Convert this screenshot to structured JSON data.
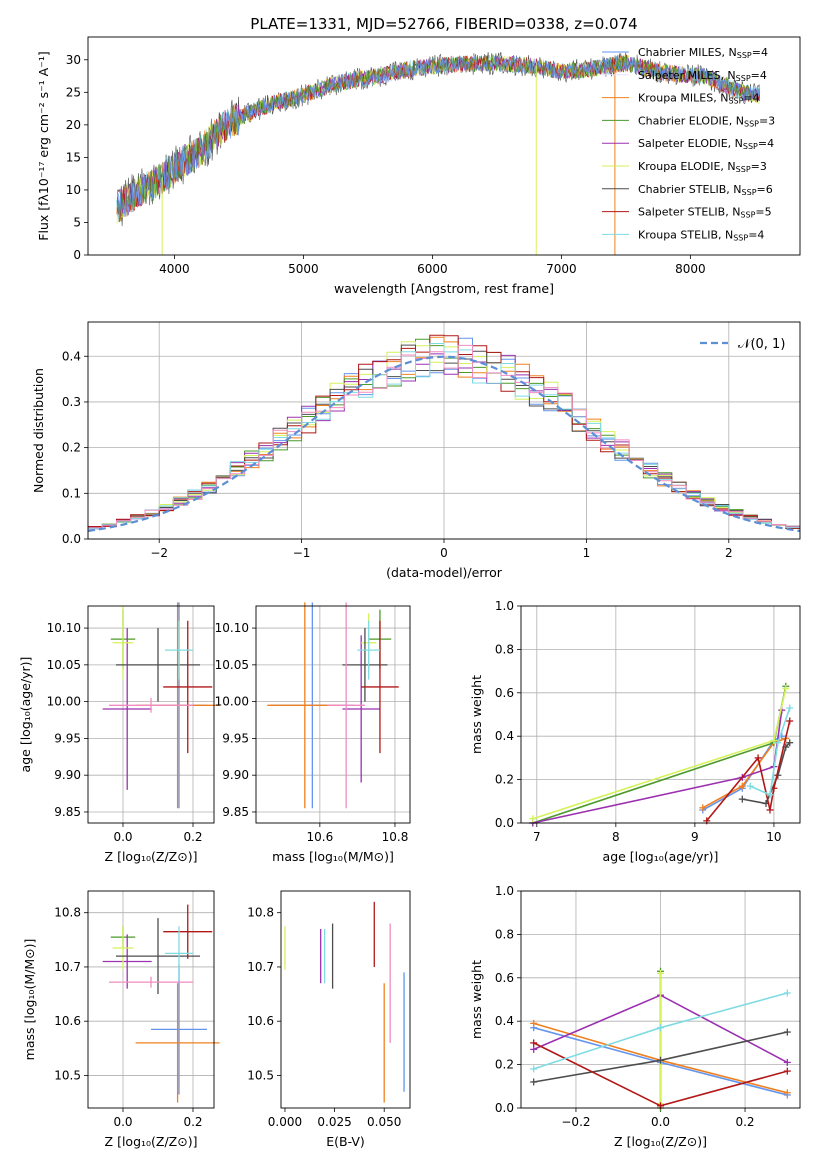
{
  "page": {
    "title": "PLATE=1331, MJD=52766, FIBERID=0338, z=0.074"
  },
  "colors": {
    "chabrier_miles": "#6495ed",
    "salpeter_miles": "#e6e6fa",
    "kroupa_miles": "#f0801f",
    "chabrier_elodie": "#4c9a2a",
    "salpeter_elodie": "#9b30b0",
    "kroupa_elodie": "#d4f25a",
    "chabrier_stelib": "#4d4d4d",
    "salpeter_stelib": "#b21818",
    "kroupa_stelib": "#7fdbe2",
    "pink": "#f08cc0",
    "normal": "#5b8fd6",
    "grid": "#b0b0b0"
  },
  "chart_data": [
    {
      "id": "spectrum",
      "type": "line",
      "title": "PLATE=1331, MJD=52766, FIBERID=0338, z=0.074",
      "xlabel": "wavelength [Angstrom, rest frame]",
      "ylabel": "Flux [fλ10⁻¹⁷ erg cm⁻² s⁻¹ A⁻¹]",
      "xlim": [
        3330,
        8850
      ],
      "ylim": [
        0,
        33.5
      ],
      "xticks": [
        "4000",
        "5000",
        "6000",
        "7000",
        "8000"
      ],
      "yticks": [
        "0",
        "5",
        "10",
        "15",
        "20",
        "25",
        "30"
      ],
      "grid": false,
      "legend_position": "top-right",
      "continuum": [
        [
          3550,
          7.0
        ],
        [
          3700,
          9.5
        ],
        [
          3850,
          11.0
        ],
        [
          4000,
          13.5
        ],
        [
          4200,
          16.0
        ],
        [
          4400,
          20.0
        ],
        [
          4600,
          22.0
        ],
        [
          4800,
          23.5
        ],
        [
          5000,
          24.5
        ],
        [
          5200,
          26.0
        ],
        [
          5400,
          27.0
        ],
        [
          5600,
          27.5
        ],
        [
          5800,
          28.5
        ],
        [
          6000,
          29.0
        ],
        [
          6200,
          29.3
        ],
        [
          6500,
          29.5
        ],
        [
          6800,
          29.0
        ],
        [
          7000,
          28.2
        ],
        [
          7200,
          28.5
        ],
        [
          7500,
          29.5
        ],
        [
          7800,
          28.0
        ],
        [
          8100,
          27.5
        ],
        [
          8400,
          25.0
        ],
        [
          8550,
          24.5
        ]
      ],
      "series": [
        {
          "name": "Chabrier MILES, NSSP=4",
          "label": "Chabrier MILES, N",
          "sub": "SSP",
          "n": "=4",
          "color_key": "chabrier_miles"
        },
        {
          "name": "Salpeter MILES, NSSP=4",
          "label": "Salpeter MILES, N",
          "sub": "SSP",
          "n": "=4",
          "color_key": "salpeter_miles"
        },
        {
          "name": "Kroupa MILES, NSSP=4",
          "label": "Kroupa MILES, N",
          "sub": "SSP",
          "n": "=4",
          "color_key": "kroupa_miles"
        },
        {
          "name": "Chabrier ELODIE, NSSP=3",
          "label": "Chabrier ELODIE, N",
          "sub": "SSP",
          "n": "=3",
          "color_key": "chabrier_elodie"
        },
        {
          "name": "Salpeter ELODIE, NSSP=4",
          "label": "Salpeter ELODIE, N",
          "sub": "SSP",
          "n": "=4",
          "color_key": "salpeter_elodie"
        },
        {
          "name": "Kroupa ELODIE, NSSP=3",
          "label": "Kroupa ELODIE, N",
          "sub": "SSP",
          "n": "=3",
          "color_key": "kroupa_elodie"
        },
        {
          "name": "Chabrier STELIB, NSSP=6",
          "label": "Chabrier STELIB, N",
          "sub": "SSP",
          "n": "=6",
          "color_key": "chabrier_stelib"
        },
        {
          "name": "Salpeter STELIB, NSSP=5",
          "label": "Salpeter STELIB, N",
          "sub": "SSP",
          "n": "=5",
          "color_key": "salpeter_stelib"
        },
        {
          "name": "Kroupa STELIB, NSSP=4",
          "label": "Kroupa STELIB, N",
          "sub": "SSP",
          "n": "=4",
          "color_key": "kroupa_stelib"
        }
      ]
    },
    {
      "id": "residuals",
      "type": "line",
      "xlabel": "(data-model)/error",
      "ylabel": "Normed distribution",
      "xlim": [
        -2.5,
        2.5
      ],
      "ylim": [
        0,
        0.475
      ],
      "xticks": [
        "−2",
        "−1",
        "0",
        "1",
        "2"
      ],
      "yticks": [
        "0.0",
        "0.1",
        "0.2",
        "0.3",
        "0.4"
      ],
      "grid": true,
      "legend": "𝒩(0, 1)",
      "legend_position": "top-right",
      "bin_width": 0.1
    },
    {
      "id": "age_vs_z",
      "type": "scatter",
      "xlabel": "Z [log₁₀(Z/Z⊙)]",
      "ylabel": "age  [log₁₀(age/yr)]",
      "xlim": [
        -0.1,
        0.26
      ],
      "ylim": [
        9.835,
        10.13
      ],
      "xticks": [
        "0.0",
        "0.2"
      ],
      "yticks": [
        "9.85",
        "9.90",
        "9.95",
        "10.00",
        "10.05",
        "10.10"
      ],
      "grid": true,
      "points": [
        {
          "x": 0.16,
          "y": 9.995,
          "xerr": 0.08,
          "yerr": 0.14,
          "color_key": "chabrier_miles"
        },
        {
          "x": 0.156,
          "y": 9.995,
          "xerr": 0.12,
          "yerr": 0.14,
          "color_key": "kroupa_miles"
        },
        {
          "x": 0.0,
          "y": 10.085,
          "xerr": 0.035,
          "yerr": 0.04,
          "color_key": "chabrier_elodie"
        },
        {
          "x": 0.012,
          "y": 9.99,
          "xerr": 0.07,
          "yerr": 0.11,
          "color_key": "salpeter_elodie"
        },
        {
          "x": 0.0,
          "y": 10.08,
          "xerr": 0.03,
          "yerr": 0.05,
          "color_key": "kroupa_elodie"
        },
        {
          "x": 0.1,
          "y": 10.05,
          "xerr": 0.12,
          "yerr": 0.05,
          "color_key": "chabrier_stelib"
        },
        {
          "x": 0.185,
          "y": 10.02,
          "xerr": 0.07,
          "yerr": 0.09,
          "color_key": "salpeter_stelib"
        },
        {
          "x": 0.16,
          "y": 10.07,
          "xerr": 0.04,
          "yerr": 0.04,
          "color_key": "kroupa_stelib"
        },
        {
          "x": 0.08,
          "y": 9.995,
          "xerr": 0.12,
          "yerr": 0.01,
          "color_key": "pink"
        }
      ]
    },
    {
      "id": "age_vs_mass",
      "type": "scatter",
      "xlabel": "mass [log₁₀(M/M⊙)]",
      "xlim": [
        10.43,
        10.84
      ],
      "ylim": [
        9.835,
        10.13
      ],
      "xticks": [
        "10.6",
        "10.8"
      ],
      "yticks": [
        "9.85",
        "9.90",
        "9.95",
        "10.00",
        "10.05",
        "10.10"
      ],
      "grid": true,
      "points": [
        {
          "x": 10.58,
          "y": 9.995,
          "xerr": 0.11,
          "yerr": 0.14,
          "color_key": "chabrier_miles"
        },
        {
          "x": 10.56,
          "y": 9.995,
          "xerr": 0.1,
          "yerr": 0.14,
          "color_key": "kroupa_miles"
        },
        {
          "x": 10.76,
          "y": 10.085,
          "xerr": 0.03,
          "yerr": 0.04,
          "color_key": "chabrier_elodie"
        },
        {
          "x": 10.71,
          "y": 9.99,
          "xerr": 0.05,
          "yerr": 0.1,
          "color_key": "salpeter_elodie"
        },
        {
          "x": 10.73,
          "y": 10.08,
          "xerr": 0.02,
          "yerr": 0.04,
          "color_key": "kroupa_elodie"
        },
        {
          "x": 10.72,
          "y": 10.05,
          "xerr": 0.06,
          "yerr": 0.05,
          "color_key": "chabrier_stelib"
        },
        {
          "x": 10.76,
          "y": 10.02,
          "xerr": 0.05,
          "yerr": 0.09,
          "color_key": "salpeter_stelib"
        },
        {
          "x": 10.73,
          "y": 10.07,
          "xerr": 0.03,
          "yerr": 0.04,
          "color_key": "kroupa_stelib"
        },
        {
          "x": 10.67,
          "y": 9.995,
          "xerr": 0.05,
          "yerr": 0.14,
          "color_key": "pink"
        }
      ]
    },
    {
      "id": "mass_weight_vs_age",
      "type": "line",
      "xlabel": "age  [log₁₀(age/yr)]",
      "ylabel": "mass weight",
      "xlim": [
        6.8,
        10.33
      ],
      "ylim": [
        0,
        1
      ],
      "xticks": [
        "7",
        "8",
        "9",
        "10"
      ],
      "yticks": [
        "0.0",
        "0.2",
        "0.4",
        "0.6",
        "0.8",
        "1.0"
      ],
      "grid": true,
      "series": [
        {
          "color_key": "chabrier_miles",
          "x": [
            9.1,
            9.6,
            10.0,
            10.1
          ],
          "y": [
            0.06,
            0.16,
            0.38,
            0.4
          ]
        },
        {
          "color_key": "kroupa_miles",
          "x": [
            9.1,
            9.6,
            10.0,
            10.15
          ],
          "y": [
            0.07,
            0.17,
            0.37,
            0.39
          ]
        },
        {
          "color_key": "chabrier_elodie",
          "x": [
            6.95,
            10.0,
            10.15
          ],
          "y": [
            0.0,
            0.37,
            0.63
          ]
        },
        {
          "color_key": "salpeter_elodie",
          "x": [
            6.95,
            9.6,
            10.0,
            10.1
          ],
          "y": [
            0.0,
            0.21,
            0.26,
            0.52
          ]
        },
        {
          "color_key": "kroupa_elodie",
          "x": [
            6.95,
            10.0,
            10.15
          ],
          "y": [
            0.02,
            0.38,
            0.62
          ]
        },
        {
          "color_key": "chabrier_stelib",
          "x": [
            9.6,
            9.9,
            10.05,
            10.15,
            10.2
          ],
          "y": [
            0.11,
            0.09,
            0.22,
            0.35,
            0.37
          ]
        },
        {
          "color_key": "salpeter_stelib",
          "x": [
            9.15,
            9.8,
            9.95,
            10.0,
            10.2
          ],
          "y": [
            0.01,
            0.3,
            0.06,
            0.16,
            0.47
          ]
        },
        {
          "color_key": "kroupa_stelib",
          "x": [
            9.7,
            9.95,
            10.05,
            10.2
          ],
          "y": [
            0.17,
            0.13,
            0.37,
            0.53
          ]
        }
      ]
    },
    {
      "id": "mass_vs_z",
      "type": "scatter",
      "xlabel": "Z [log₁₀(Z/Z⊙)]",
      "ylabel": "mass [log₁₀(M/M⊙)]",
      "xlim": [
        -0.1,
        0.26
      ],
      "ylim": [
        10.44,
        10.84
      ],
      "xticks": [
        "0.0",
        "0.2"
      ],
      "yticks": [
        "10.5",
        "10.6",
        "10.7",
        "10.8"
      ],
      "grid": true,
      "points": [
        {
          "x": 0.16,
          "y": 10.585,
          "xerr": 0.08,
          "yerr": 0.12,
          "color_key": "chabrier_miles"
        },
        {
          "x": 0.156,
          "y": 10.56,
          "xerr": 0.12,
          "yerr": 0.11,
          "color_key": "kroupa_miles"
        },
        {
          "x": 0.0,
          "y": 10.755,
          "xerr": 0.035,
          "yerr": 0.02,
          "color_key": "chabrier_elodie"
        },
        {
          "x": 0.012,
          "y": 10.71,
          "xerr": 0.07,
          "yerr": 0.05,
          "color_key": "salpeter_elodie"
        },
        {
          "x": 0.0,
          "y": 10.735,
          "xerr": 0.03,
          "yerr": 0.04,
          "color_key": "kroupa_elodie"
        },
        {
          "x": 0.1,
          "y": 10.72,
          "xerr": 0.12,
          "yerr": 0.07,
          "color_key": "chabrier_stelib"
        },
        {
          "x": 0.185,
          "y": 10.765,
          "xerr": 0.07,
          "yerr": 0.05,
          "color_key": "salpeter_stelib"
        },
        {
          "x": 0.16,
          "y": 10.725,
          "xerr": 0.04,
          "yerr": 0.05,
          "color_key": "kroupa_stelib"
        },
        {
          "x": 0.08,
          "y": 10.672,
          "xerr": 0.12,
          "yerr": 0.01,
          "color_key": "pink"
        }
      ]
    },
    {
      "id": "mass_vs_ebv",
      "type": "scatter",
      "xlabel": "E(B-V)",
      "xlim": [
        -0.002,
        0.063
      ],
      "ylim": [
        10.44,
        10.84
      ],
      "xticks": [
        "0.000",
        "0.025",
        "0.050"
      ],
      "yticks": [
        "10.5",
        "10.6",
        "10.7",
        "10.8"
      ],
      "grid": false,
      "points": [
        {
          "x": 0.0,
          "y": 10.735,
          "yerr": 0.04,
          "color_key": "kroupa_elodie"
        },
        {
          "x": 0.018,
          "y": 10.72,
          "yerr": 0.05,
          "color_key": "salpeter_elodie"
        },
        {
          "x": 0.02,
          "y": 10.72,
          "yerr": 0.05,
          "color_key": "kroupa_stelib"
        },
        {
          "x": 0.024,
          "y": 10.72,
          "yerr": 0.06,
          "color_key": "chabrier_stelib"
        },
        {
          "x": 0.045,
          "y": 10.76,
          "yerr": 0.06,
          "color_key": "salpeter_stelib"
        },
        {
          "x": 0.05,
          "y": 10.56,
          "yerr": 0.11,
          "color_key": "kroupa_miles"
        },
        {
          "x": 0.053,
          "y": 10.67,
          "yerr": 0.11,
          "color_key": "pink"
        },
        {
          "x": 0.06,
          "y": 10.58,
          "yerr": 0.11,
          "color_key": "chabrier_miles"
        }
      ]
    },
    {
      "id": "mass_weight_vs_z",
      "type": "line",
      "xlabel": "Z [log₁₀(Z/Z⊙)]",
      "ylabel": "mass weight",
      "xlim": [
        -0.33,
        0.33
      ],
      "ylim": [
        0,
        1
      ],
      "xticks": [
        "−0.2",
        "0.0",
        "0.2"
      ],
      "yticks": [
        "0.0",
        "0.2",
        "0.4",
        "0.6",
        "0.8",
        "1.0"
      ],
      "grid": true,
      "series": [
        {
          "color_key": "chabrier_miles",
          "x": [
            -0.3,
            0.0,
            0.3
          ],
          "y": [
            0.37,
            0.21,
            0.06
          ]
        },
        {
          "color_key": "kroupa_miles",
          "x": [
            -0.3,
            0.0,
            0.3
          ],
          "y": [
            0.39,
            0.22,
            0.07
          ]
        },
        {
          "color_key": "chabrier_elodie",
          "x": [
            0.0,
            0.0
          ],
          "y": [
            0.0,
            0.63
          ]
        },
        {
          "color_key": "salpeter_elodie",
          "x": [
            -0.3,
            0.0,
            0.3
          ],
          "y": [
            0.27,
            0.52,
            0.21
          ]
        },
        {
          "color_key": "kroupa_elodie",
          "x": [
            0.0,
            0.0
          ],
          "y": [
            0.02,
            0.62
          ]
        },
        {
          "color_key": "chabrier_stelib",
          "x": [
            -0.3,
            0.0,
            0.3
          ],
          "y": [
            0.12,
            0.22,
            0.35
          ]
        },
        {
          "color_key": "salpeter_stelib",
          "x": [
            -0.3,
            0.0,
            0.3
          ],
          "y": [
            0.3,
            0.01,
            0.17
          ]
        },
        {
          "color_key": "kroupa_stelib",
          "x": [
            -0.3,
            0.0,
            0.3
          ],
          "y": [
            0.18,
            0.37,
            0.53
          ]
        }
      ]
    }
  ]
}
